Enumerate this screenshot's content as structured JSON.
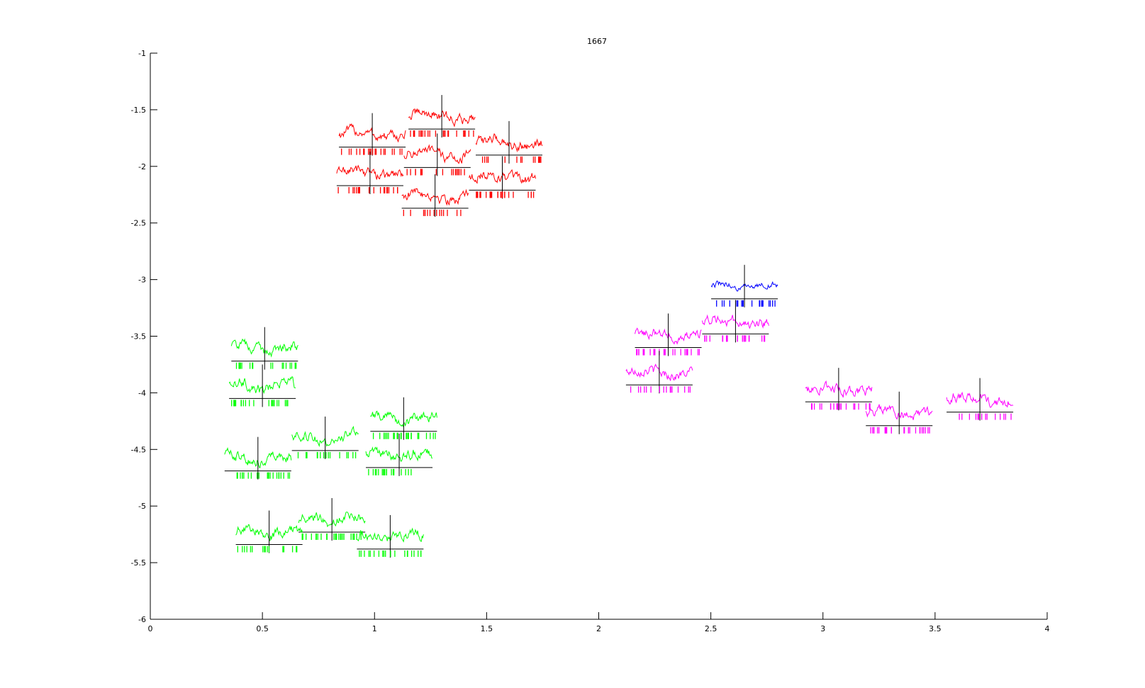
{
  "chart_data": {
    "type": "scatter",
    "title": "1667",
    "xlabel": "",
    "ylabel": "",
    "xlim": [
      0,
      4
    ],
    "ylim": [
      -6,
      -1
    ],
    "x_ticks": [
      "0",
      "0.5",
      "1",
      "1.5",
      "2",
      "2.5",
      "3",
      "3.5",
      "4"
    ],
    "y_ticks": [
      "-1",
      "-1.5",
      "-2",
      "-2.5",
      "-3",
      "-3.5",
      "-4",
      "-4.5",
      "-5",
      "-5.5",
      "-6"
    ],
    "marker": "waveform glyph with spike raster",
    "grid": false,
    "legend": "none",
    "series": [
      {
        "color": "#ff0000",
        "points": [
          {
            "x": 0.99,
            "y": -1.83
          },
          {
            "x": 1.3,
            "y": -1.67
          },
          {
            "x": 1.6,
            "y": -1.9
          },
          {
            "x": 1.28,
            "y": -2.01
          },
          {
            "x": 0.98,
            "y": -2.17
          },
          {
            "x": 1.57,
            "y": -2.21
          },
          {
            "x": 1.27,
            "y": -2.37
          }
        ]
      },
      {
        "color": "#0000ff",
        "points": [
          {
            "x": 2.65,
            "y": -3.17
          }
        ]
      },
      {
        "color": "#ff00ff",
        "points": [
          {
            "x": 2.61,
            "y": -3.48
          },
          {
            "x": 2.31,
            "y": -3.6
          },
          {
            "x": 2.27,
            "y": -3.93
          },
          {
            "x": 3.07,
            "y": -4.08
          },
          {
            "x": 3.34,
            "y": -4.29
          },
          {
            "x": 3.7,
            "y": -4.17
          }
        ]
      },
      {
        "color": "#00ff00",
        "points": [
          {
            "x": 0.51,
            "y": -3.72
          },
          {
            "x": 0.5,
            "y": -4.05
          },
          {
            "x": 1.13,
            "y": -4.34
          },
          {
            "x": 0.78,
            "y": -4.51
          },
          {
            "x": 1.11,
            "y": -4.66
          },
          {
            "x": 0.48,
            "y": -4.69
          },
          {
            "x": 0.81,
            "y": -5.23
          },
          {
            "x": 0.53,
            "y": -5.34
          },
          {
            "x": 1.07,
            "y": -5.38
          }
        ]
      }
    ]
  }
}
